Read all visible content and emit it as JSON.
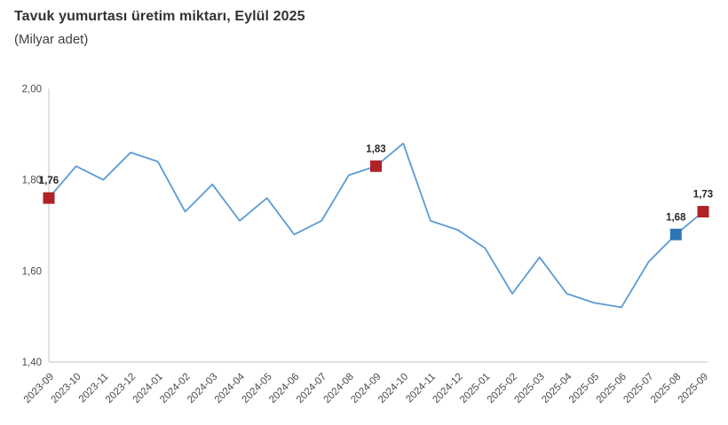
{
  "header": {
    "title": "Tavuk yumurtası üretim miktarı, Eylül 2025",
    "subtitle": "(Milyar adet)"
  },
  "chart_data": {
    "type": "line",
    "title": "Tavuk yumurtası üretim miktarı, Eylül 2025",
    "subtitle": "(Milyar adet)",
    "x": [
      "2023-09",
      "2023-10",
      "2023-11",
      "2023-12",
      "2024-01",
      "2024-02",
      "2024-03",
      "2024-04",
      "2024-05",
      "2024-06",
      "2024-07",
      "2024-08",
      "2024-09",
      "2024-10",
      "2024-11",
      "2024-12",
      "2025-01",
      "2025-02",
      "2025-03",
      "2025-04",
      "2025-05",
      "2025-06",
      "2025-07",
      "2025-08",
      "2025-09"
    ],
    "values": [
      1.76,
      1.83,
      1.8,
      1.86,
      1.84,
      1.73,
      1.79,
      1.71,
      1.76,
      1.68,
      1.71,
      1.81,
      1.83,
      1.88,
      1.71,
      1.69,
      1.65,
      1.55,
      1.63,
      1.55,
      1.53,
      1.52,
      1.62,
      1.68,
      1.73
    ],
    "xlabel": "",
    "ylabel": "",
    "ylim": [
      1.4,
      2.0
    ],
    "yticks": [
      2.0,
      1.8,
      1.6,
      1.4
    ],
    "ytick_labels": [
      "2,00",
      "1,80",
      "1,60",
      "1,40"
    ],
    "grid": false,
    "legend": null,
    "line_color": "#5B9BD5",
    "axis_color": "#D6D6D6",
    "tick_label_color": "#4A4A4A",
    "data_label_color": "#262626",
    "annotations": [
      {
        "x": "2023-09",
        "label": "1,76",
        "marker": "square",
        "color": "#B02228"
      },
      {
        "x": "2024-09",
        "label": "1,83",
        "marker": "square",
        "color": "#B02228"
      },
      {
        "x": "2025-08",
        "label": "1,68",
        "marker": "square",
        "color": "#2E75B6"
      },
      {
        "x": "2025-09",
        "label": "1,73",
        "marker": "square",
        "color": "#B02228"
      }
    ]
  }
}
